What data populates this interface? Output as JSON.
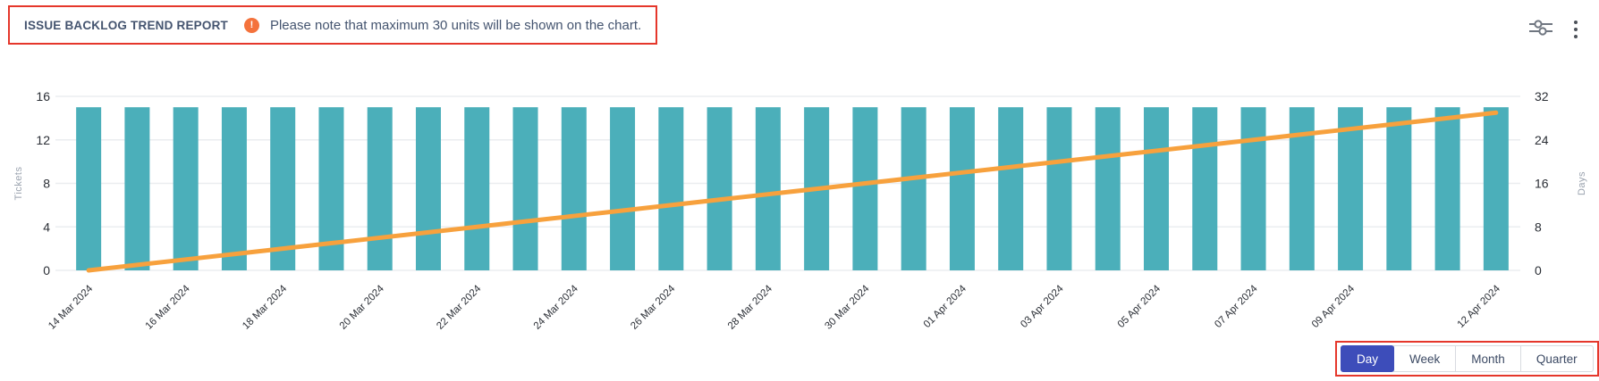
{
  "header": {
    "title": "ISSUE BACKLOG TREND REPORT",
    "warning_glyph": "!",
    "note": "Please note that maximum 30 units will be shown on the chart.",
    "annotation_color": "#e5372b"
  },
  "toolbar": {
    "icons": [
      "sliders-icon",
      "kebab-menu-icon"
    ]
  },
  "chart_data": {
    "type": "bar",
    "title": "",
    "x": [
      "14 Mar 2024",
      "15 Mar 2024",
      "16 Mar 2024",
      "17 Mar 2024",
      "18 Mar 2024",
      "19 Mar 2024",
      "20 Mar 2024",
      "21 Mar 2024",
      "22 Mar 2024",
      "23 Mar 2024",
      "24 Mar 2024",
      "25 Mar 2024",
      "26 Mar 2024",
      "27 Mar 2024",
      "28 Mar 2024",
      "29 Mar 2024",
      "30 Mar 2024",
      "31 Mar 2024",
      "01 Apr 2024",
      "02 Apr 2024",
      "03 Apr 2024",
      "04 Apr 2024",
      "05 Apr 2024",
      "06 Apr 2024",
      "07 Apr 2024",
      "08 Apr 2024",
      "09 Apr 2024",
      "10 Apr 2024",
      "11 Apr 2024",
      "12 Apr 2024"
    ],
    "x_tick_indices": [
      0,
      2,
      4,
      6,
      8,
      10,
      12,
      14,
      16,
      18,
      20,
      22,
      24,
      26,
      29
    ],
    "series": [
      {
        "name": "Tickets",
        "type": "bar",
        "color": "#4bafba",
        "axis": "left",
        "values": [
          15,
          15,
          15,
          15,
          15,
          15,
          15,
          15,
          15,
          15,
          15,
          15,
          15,
          15,
          15,
          15,
          15,
          15,
          15,
          15,
          15,
          15,
          15,
          15,
          15,
          15,
          15,
          15,
          15,
          15
        ]
      },
      {
        "name": "Days",
        "type": "line",
        "color": "#f7a13d",
        "axis": "right",
        "values": [
          0,
          1,
          2,
          3,
          4,
          5,
          6,
          7,
          8,
          9,
          10,
          11,
          12,
          13,
          14,
          15,
          16,
          17,
          18,
          19,
          20,
          21,
          22,
          23,
          24,
          25,
          26,
          27,
          28,
          29
        ]
      }
    ],
    "left_axis": {
      "label": "Tickets",
      "ticks": [
        0,
        4,
        8,
        12,
        16
      ],
      "min": 0,
      "max": 16
    },
    "right_axis": {
      "label": "Days",
      "ticks": [
        0,
        8,
        16,
        24,
        32
      ],
      "min": 0,
      "max": 32
    },
    "grid": true,
    "legend": "none"
  },
  "period_switcher": {
    "options": [
      {
        "label": "Day",
        "selected": true
      },
      {
        "label": "Week",
        "selected": false
      },
      {
        "label": "Month",
        "selected": false
      },
      {
        "label": "Quarter",
        "selected": false
      }
    ],
    "selected_bg": "#3d4dba"
  }
}
